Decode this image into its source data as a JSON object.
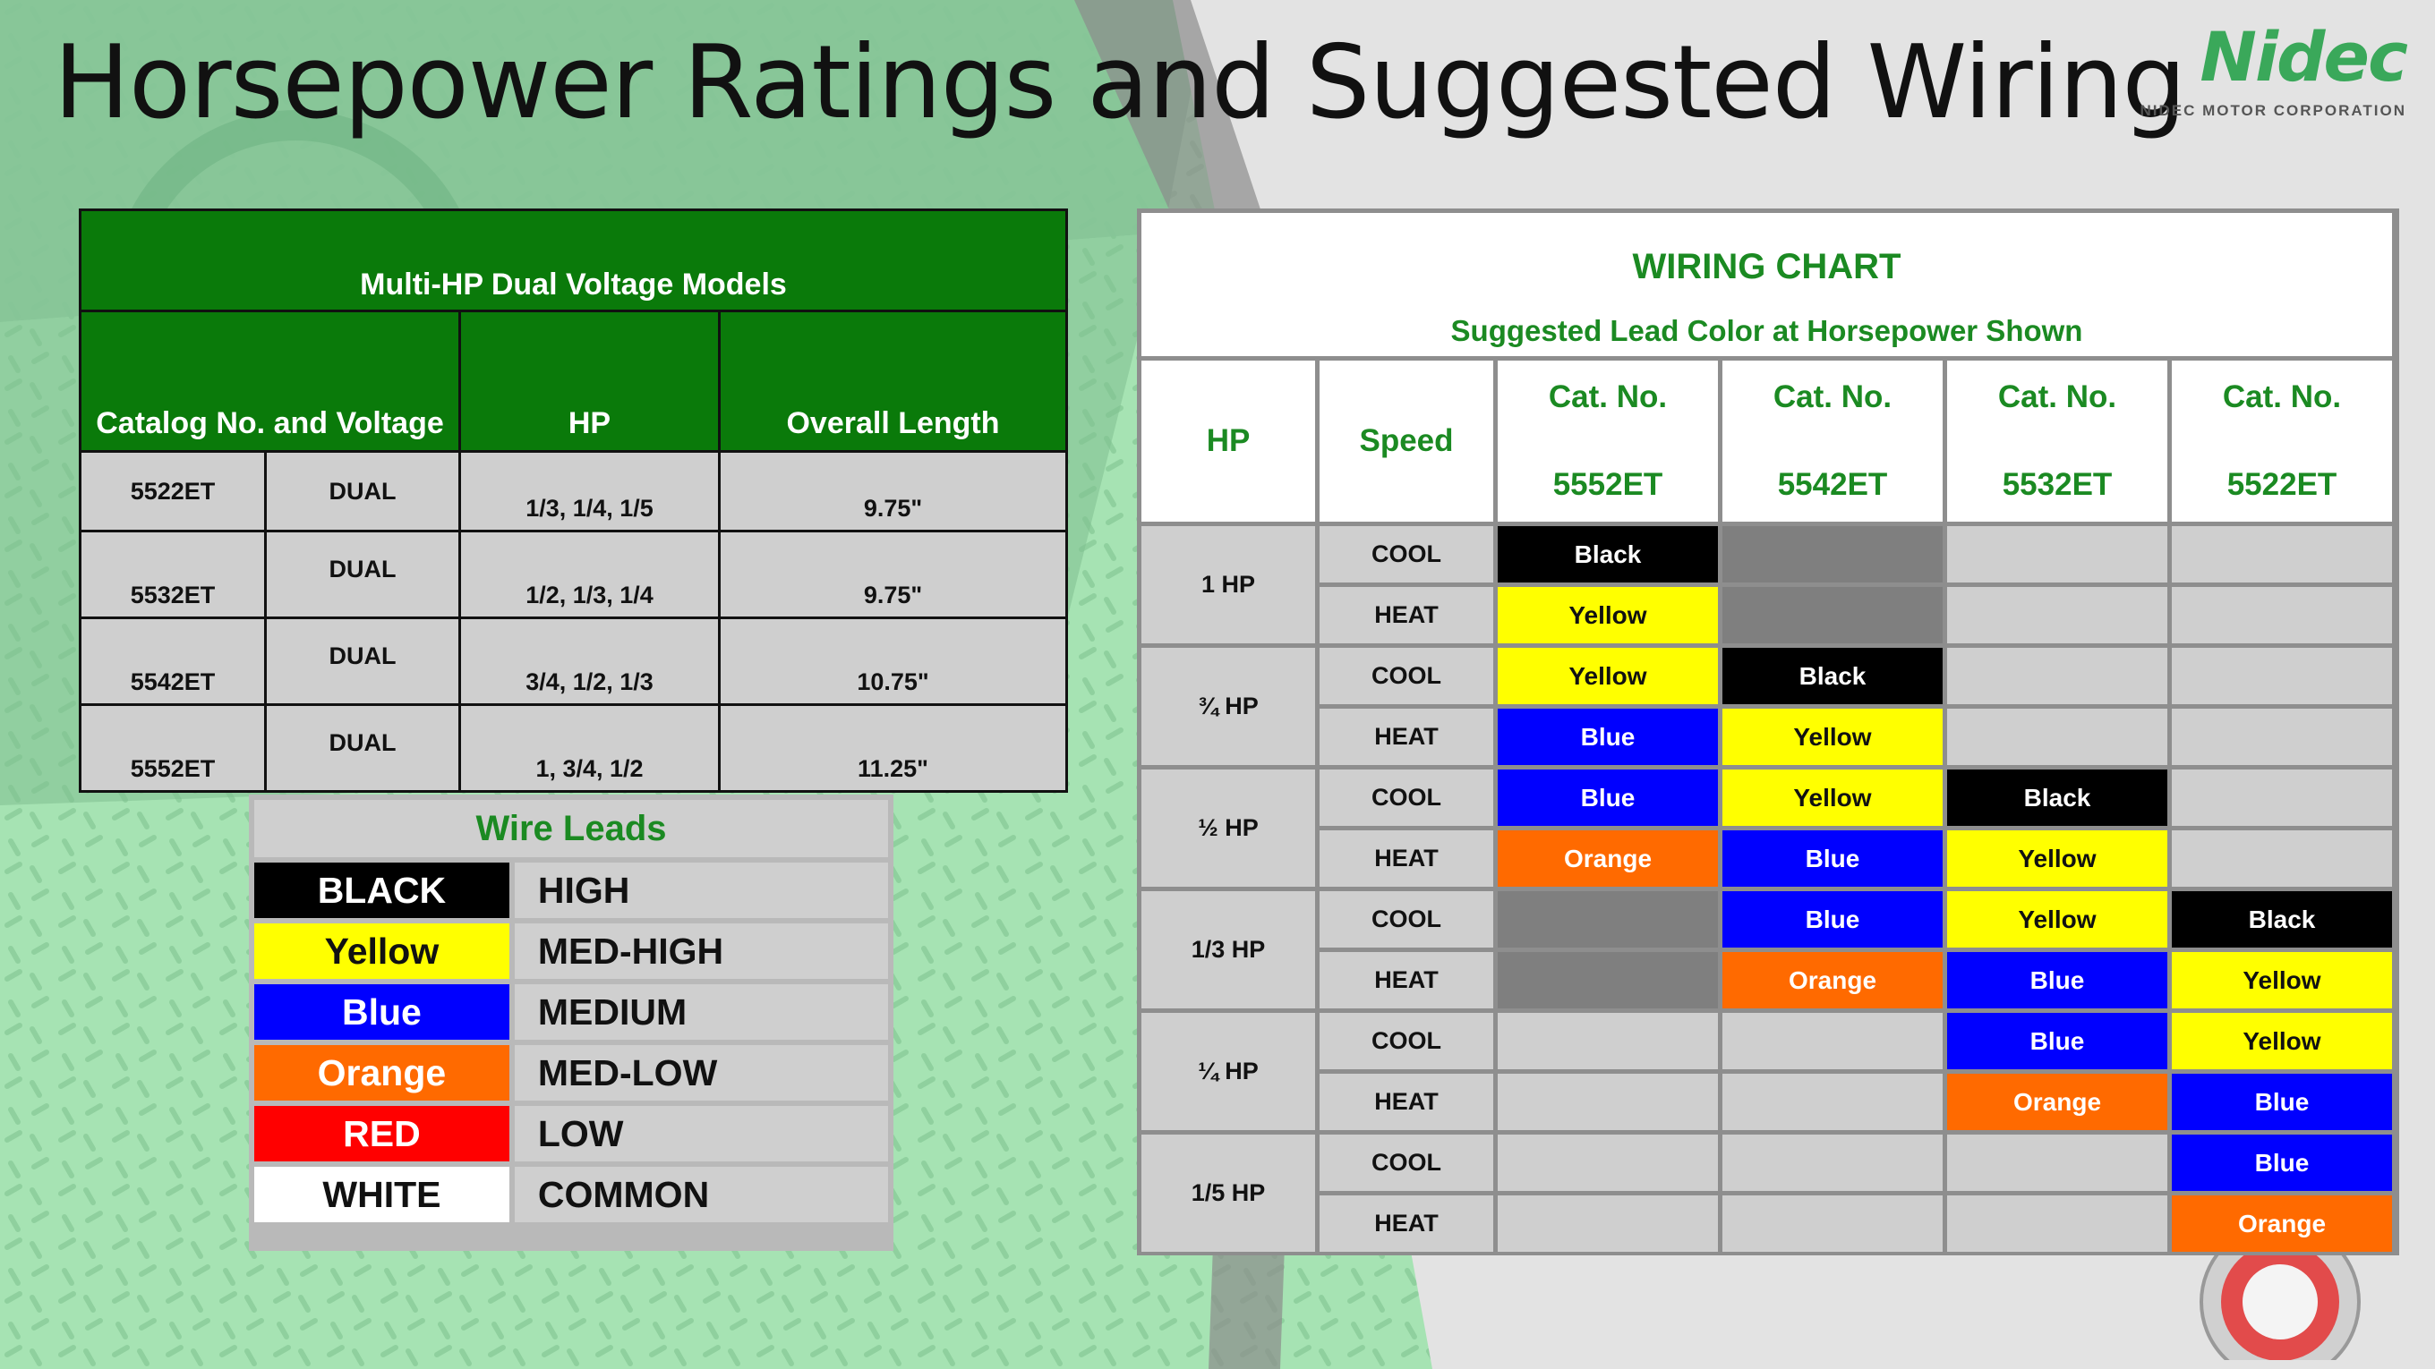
{
  "title": "Horsepower Ratings and Suggested Wiring",
  "logo": {
    "word": "Nidec",
    "sub": "NIDEC MOTOR CORPORATION"
  },
  "colors": {
    "green_header": "#0a7a0a",
    "green_text": "#1b8a22",
    "Black": "#000000",
    "Yellow": "#ffff00",
    "Blue": "#0000ff",
    "Orange": "#ff6a00",
    "Red": "#ff0000",
    "White": "#ffffff",
    "empty": "#cfcfcf",
    "na": "#7f7f7f"
  },
  "models": {
    "title": "Multi-HP Dual Voltage Models",
    "col1": "Catalog  No. and Voltage",
    "col2": "HP",
    "col3": "Overall Length",
    "rows": [
      {
        "cat": "5522ET",
        "voltage": "DUAL",
        "hp": "1/3, 1/4, 1/5",
        "length": "9.75\""
      },
      {
        "cat": "5532ET",
        "voltage": "DUAL",
        "hp": "1/2, 1/3, 1/4",
        "length": "9.75\""
      },
      {
        "cat": "5542ET",
        "voltage": "DUAL",
        "hp": "3/4, 1/2, 1/3",
        "length": "10.75\""
      },
      {
        "cat": "5552ET",
        "voltage": "DUAL",
        "hp": "1, 3/4, 1/2",
        "length": "11.25\""
      }
    ]
  },
  "leads": {
    "title": "Wire Leads",
    "rows": [
      {
        "color": "BLACK",
        "speed": "HIGH",
        "bg": "#000000",
        "fg": "#ffffff"
      },
      {
        "color": "Yellow",
        "speed": "MED-HIGH",
        "bg": "#ffff00",
        "fg": "#111111"
      },
      {
        "color": "Blue",
        "speed": "MEDIUM",
        "bg": "#0000ff",
        "fg": "#ffffff"
      },
      {
        "color": "Orange",
        "speed": "MED-LOW",
        "bg": "#ff6a00",
        "fg": "#ffffff"
      },
      {
        "color": "RED",
        "speed": "LOW",
        "bg": "#ff0000",
        "fg": "#ffffff"
      },
      {
        "color": "WHITE",
        "speed": "COMMON",
        "bg": "#ffffff",
        "fg": "#111111"
      }
    ]
  },
  "wiring": {
    "title": "WIRING CHART",
    "subtitle": "Suggested Lead Color at Horsepower Shown",
    "hp_label": "HP",
    "speed_label": "Speed",
    "cat_label": "Cat. No.",
    "cats": [
      "5552ET",
      "5542ET",
      "5532ET",
      "5522ET"
    ],
    "groups": [
      {
        "hp": "1 HP",
        "rows": [
          {
            "speed": "COOL",
            "cells": [
              "Black",
              "NA",
              "",
              ""
            ]
          },
          {
            "speed": "HEAT",
            "cells": [
              "Yellow",
              "NA",
              "",
              ""
            ]
          }
        ]
      },
      {
        "hp": "¾ HP",
        "rows": [
          {
            "speed": "COOL",
            "cells": [
              "Yellow",
              "Black",
              "",
              ""
            ]
          },
          {
            "speed": "HEAT",
            "cells": [
              "Blue",
              "Yellow",
              "",
              ""
            ]
          }
        ]
      },
      {
        "hp": "½ HP",
        "rows": [
          {
            "speed": "COOL",
            "cells": [
              "Blue",
              "Yellow",
              "Black",
              ""
            ]
          },
          {
            "speed": "HEAT",
            "cells": [
              "Orange",
              "Blue",
              "Yellow",
              ""
            ]
          }
        ]
      },
      {
        "hp": "1/3 HP",
        "rows": [
          {
            "speed": "COOL",
            "cells": [
              "NA",
              "Blue",
              "Yellow",
              "Black"
            ]
          },
          {
            "speed": "HEAT",
            "cells": [
              "NA",
              "Orange",
              "Blue",
              "Yellow"
            ]
          }
        ]
      },
      {
        "hp": "¼ HP",
        "rows": [
          {
            "speed": "COOL",
            "cells": [
              "",
              "",
              "Blue",
              "Yellow"
            ]
          },
          {
            "speed": "HEAT",
            "cells": [
              "",
              "",
              "Orange",
              "Blue"
            ]
          }
        ]
      },
      {
        "hp": "1/5 HP",
        "rows": [
          {
            "speed": "COOL",
            "cells": [
              "",
              "",
              "",
              "Blue"
            ]
          },
          {
            "speed": "HEAT",
            "cells": [
              "",
              "",
              "",
              "Orange"
            ]
          }
        ]
      }
    ]
  }
}
